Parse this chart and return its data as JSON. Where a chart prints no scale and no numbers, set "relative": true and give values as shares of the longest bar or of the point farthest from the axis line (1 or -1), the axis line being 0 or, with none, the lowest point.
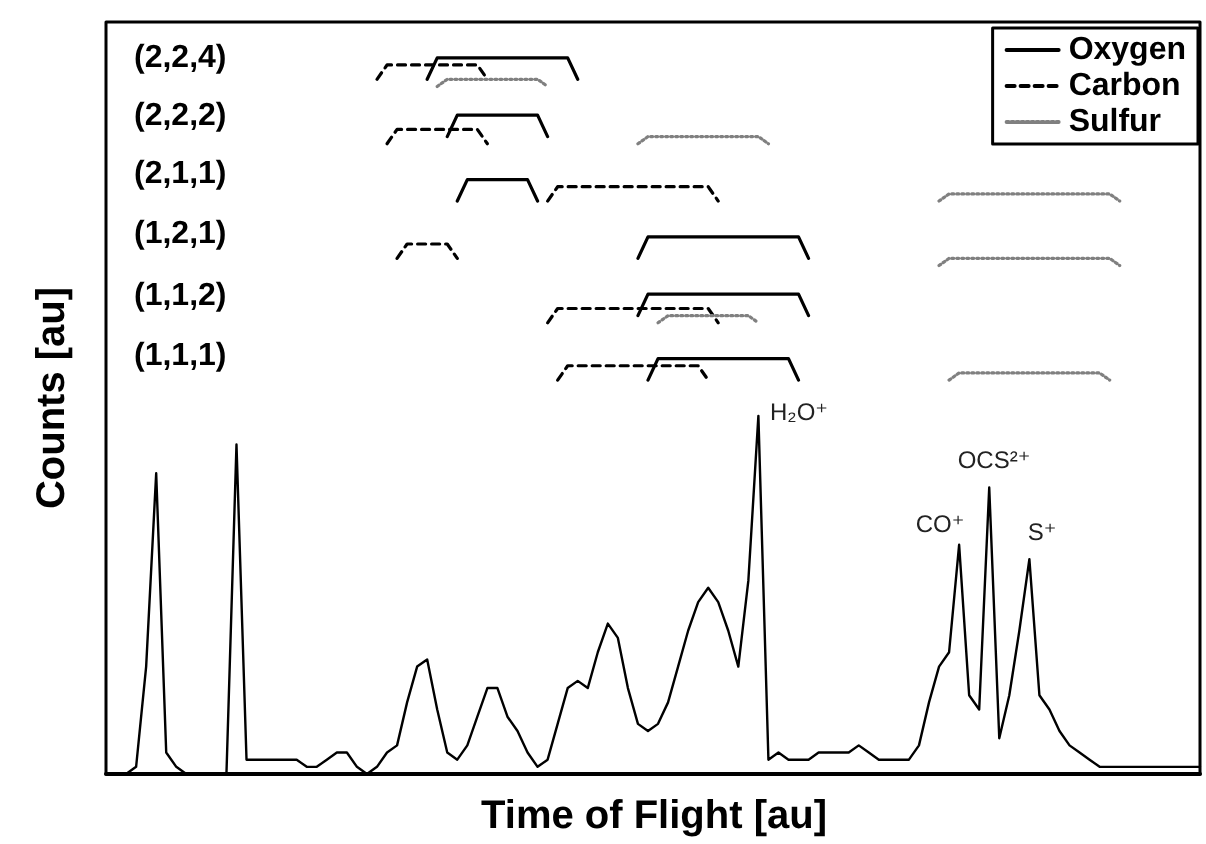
{
  "chart_data": {
    "type": "line",
    "relative": true,
    "xlabel": "Time of Flight [au]",
    "ylabel": "Counts [au]",
    "legend": "top right",
    "marker": "none",
    "grid": false,
    "categories": [
      null,
      null,
      null,
      null,
      null,
      null,
      null,
      null,
      null,
      null,
      null,
      null,
      null,
      null,
      null,
      null,
      null,
      null,
      null,
      null,
      null,
      null,
      null,
      null,
      null,
      null,
      null,
      null,
      null,
      null,
      null,
      null,
      null,
      null,
      null,
      null,
      null,
      null,
      null,
      null,
      null,
      null,
      null,
      null,
      null,
      null,
      null,
      null,
      null,
      null,
      null,
      null,
      null,
      null,
      null,
      null,
      null,
      null,
      null,
      null,
      null,
      null,
      null,
      null,
      null,
      null,
      null,
      null,
      null,
      null,
      null,
      null,
      null,
      null,
      null,
      null,
      null,
      null,
      null,
      null,
      null,
      null,
      null,
      null,
      null,
      null,
      null,
      null,
      null,
      null,
      null,
      null,
      null,
      null,
      null,
      null,
      null,
      null,
      null,
      null,
      null,
      null,
      null,
      null,
      null,
      null,
      null,
      null,
      null,
      null
    ],
    "annotations": [
      "H₂O⁺",
      "CO⁺",
      "OCS²⁺",
      "S⁺",
      "(2,2,4)",
      "(2,2,2)",
      "(2,1,1)",
      "(1,2,1)",
      "(1,1,2)",
      "(1,1,1)"
    ],
    "series": [
      {
        "color": "#000000",
        "line_style": "solid",
        "values": [
          0,
          0,
          0,
          0.01,
          0.15,
          0.42,
          0.03,
          0.01,
          0,
          0,
          0,
          0,
          0,
          0.46,
          0.02,
          0.02,
          0.02,
          0.02,
          0.02,
          0.02,
          0.01,
          0.01,
          0.02,
          0.03,
          0.03,
          0.01,
          0,
          0.01,
          0.03,
          0.04,
          0.1,
          0.15,
          0.16,
          0.09,
          0.03,
          0.02,
          0.04,
          0.08,
          0.12,
          0.12,
          0.08,
          0.06,
          0.03,
          0.01,
          0.02,
          0.07,
          0.12,
          0.13,
          0.12,
          0.17,
          0.21,
          0.19,
          0.12,
          0.07,
          0.06,
          0.07,
          0.1,
          0.15,
          0.2,
          0.24,
          0.26,
          0.24,
          0.2,
          0.15,
          0.27,
          0.5,
          0.02,
          0.03,
          0.02,
          0.02,
          0.02,
          0.03,
          0.03,
          0.03,
          0.03,
          0.04,
          0.03,
          0.02,
          0.02,
          0.02,
          0.02,
          0.04,
          0.1,
          0.15,
          0.17,
          0.32,
          0.11,
          0.09,
          0.4,
          0.05,
          0.11,
          0.2,
          0.3,
          0.11,
          0.09,
          0.06,
          0.04,
          0.03,
          0.02,
          0.01,
          0.01,
          0.01,
          0.01,
          0.01,
          0.01,
          0.01,
          0.01,
          0.01,
          0.01,
          0.01
        ]
      },
      {
        "name": "Oxygen",
        "color": "#000000",
        "line_style": "solid",
        "values": [
          null,
          null,
          null,
          null,
          null,
          null,
          null,
          null,
          null,
          null,
          null,
          null,
          null,
          null,
          null,
          null,
          null,
          null,
          null,
          null,
          null,
          null,
          null,
          null,
          null,
          null,
          null,
          null,
          null,
          null,
          null,
          null,
          0.97,
          1.0,
          1.0,
          1.0,
          1.0,
          1.0,
          1.0,
          1.0,
          1.0,
          1.0,
          1.0,
          1.0,
          1.0,
          1.0,
          1.0,
          0.97,
          null,
          null,
          null,
          null,
          null,
          null,
          null,
          null,
          null,
          null,
          null,
          null,
          null,
          null,
          null,
          null,
          null,
          null,
          null,
          null,
          null,
          null,
          null,
          null,
          null,
          null,
          null,
          null,
          null,
          null,
          null,
          null,
          null,
          null,
          null,
          null,
          null,
          null,
          null,
          null,
          null,
          null,
          null,
          null,
          null,
          null,
          null,
          null,
          null,
          null,
          null,
          null,
          null,
          null,
          null,
          null,
          null,
          null,
          null,
          null,
          null,
          null
        ]
      },
      {
        "name": "Carbon",
        "color": "#000000",
        "line_style": "dashed",
        "values": [
          null,
          null,
          null,
          null,
          null,
          null,
          null,
          null,
          null,
          null,
          null,
          null,
          null,
          null,
          null,
          null,
          null,
          null,
          null,
          null,
          null,
          null,
          null,
          null,
          null,
          null,
          null,
          0.97,
          0.99,
          0.99,
          0.99,
          0.99,
          0.99,
          0.99,
          0.99,
          0.99,
          0.99,
          0.99,
          0.97,
          null,
          null,
          null,
          null,
          null,
          null,
          null,
          null,
          null,
          null,
          null,
          null,
          null,
          null,
          null,
          null,
          null,
          null,
          null,
          null,
          null,
          null,
          null,
          null,
          null,
          null,
          null,
          null,
          null,
          null,
          null,
          null,
          null,
          null,
          null,
          null,
          null,
          null,
          null,
          null,
          null,
          null,
          null,
          null,
          null,
          null,
          null,
          null,
          null,
          null,
          null,
          null,
          null,
          null,
          null,
          null,
          null,
          null,
          null,
          null,
          null,
          null,
          null,
          null,
          null,
          null,
          null,
          null,
          null,
          null,
          null
        ]
      },
      {
        "name": "Sulfur",
        "color": "#808080",
        "line_style": "dotted",
        "values": [
          null,
          null,
          null,
          null,
          null,
          null,
          null,
          null,
          null,
          null,
          null,
          null,
          null,
          null,
          null,
          null,
          null,
          null,
          null,
          null,
          null,
          null,
          null,
          null,
          null,
          null,
          null,
          null,
          null,
          null,
          null,
          null,
          null,
          0.96,
          0.97,
          0.97,
          0.97,
          0.97,
          0.97,
          0.97,
          0.97,
          0.97,
          0.97,
          0.97,
          0.96,
          null,
          null,
          null,
          null,
          null,
          null,
          null,
          null,
          null,
          null,
          null,
          null,
          null,
          null,
          null,
          null,
          null,
          null,
          null,
          null,
          null,
          null,
          null,
          null,
          null,
          null,
          null,
          null,
          null,
          null,
          null,
          null,
          null,
          null,
          null,
          null,
          null,
          null,
          null,
          null,
          null,
          null,
          null,
          null,
          null,
          null,
          null,
          null,
          null,
          null,
          null,
          null,
          null,
          null,
          null,
          null,
          null,
          null,
          null,
          null,
          null,
          null,
          null,
          null,
          null
        ]
      },
      {
        "color": "#000000",
        "line_style": "solid",
        "values": [
          null,
          null,
          null,
          null,
          null,
          null,
          null,
          null,
          null,
          null,
          null,
          null,
          null,
          null,
          null,
          null,
          null,
          null,
          null,
          null,
          null,
          null,
          null,
          null,
          null,
          null,
          null,
          null,
          null,
          null,
          null,
          null,
          null,
          null,
          0.89,
          0.92,
          0.92,
          0.92,
          0.92,
          0.92,
          0.92,
          0.92,
          0.92,
          0.92,
          0.89,
          null,
          null,
          null,
          null,
          null,
          null,
          null,
          null,
          null,
          null,
          null,
          null,
          null,
          null,
          null,
          null,
          null,
          null,
          null,
          null,
          null,
          null,
          null,
          null,
          null,
          null,
          null,
          null,
          null,
          null,
          null,
          null,
          null,
          null,
          null,
          null,
          null,
          null,
          null,
          null,
          null,
          null,
          null,
          null,
          null,
          null,
          null,
          null,
          null,
          null,
          null,
          null,
          null,
          null,
          null,
          null,
          null,
          null,
          null,
          null,
          null,
          null,
          null,
          null,
          null
        ]
      },
      {
        "color": "#000000",
        "line_style": "dashed",
        "values": [
          null,
          null,
          null,
          null,
          null,
          null,
          null,
          null,
          null,
          null,
          null,
          null,
          null,
          null,
          null,
          null,
          null,
          null,
          null,
          null,
          null,
          null,
          null,
          null,
          null,
          null,
          null,
          null,
          0.88,
          0.9,
          0.9,
          0.9,
          0.9,
          0.9,
          0.9,
          0.9,
          0.9,
          0.9,
          0.88,
          null,
          null,
          null,
          null,
          null,
          null,
          null,
          null,
          null,
          null,
          null,
          null,
          null,
          null,
          null,
          null,
          null,
          null,
          null,
          null,
          null,
          null,
          null,
          null,
          null,
          null,
          null,
          null,
          null,
          null,
          null,
          null,
          null,
          null,
          null,
          null,
          null,
          null,
          null,
          null,
          null,
          null,
          null,
          null,
          null,
          null,
          null,
          null,
          null,
          null,
          null,
          null,
          null,
          null,
          null,
          null,
          null,
          null,
          null,
          null,
          null,
          null,
          null,
          null,
          null,
          null,
          null,
          null,
          null,
          null,
          null
        ]
      },
      {
        "color": "#808080",
        "line_style": "dotted",
        "values": [
          null,
          null,
          null,
          null,
          null,
          null,
          null,
          null,
          null,
          null,
          null,
          null,
          null,
          null,
          null,
          null,
          null,
          null,
          null,
          null,
          null,
          null,
          null,
          null,
          null,
          null,
          null,
          null,
          null,
          null,
          null,
          null,
          null,
          null,
          null,
          null,
          null,
          null,
          null,
          null,
          null,
          null,
          null,
          null,
          null,
          null,
          null,
          null,
          null,
          null,
          null,
          null,
          null,
          0.88,
          0.89,
          0.89,
          0.89,
          0.89,
          0.89,
          0.89,
          0.89,
          0.89,
          0.89,
          0.89,
          0.89,
          0.89,
          0.88,
          null,
          null,
          null,
          null,
          null,
          null,
          null,
          null,
          null,
          null,
          null,
          null,
          null,
          null,
          null,
          null,
          null,
          null,
          null,
          null,
          null,
          null,
          null,
          null,
          null,
          null,
          null,
          null,
          null,
          null,
          null,
          null,
          null,
          null,
          null,
          null,
          null,
          null,
          null,
          null,
          null,
          null,
          null
        ]
      },
      {
        "color": "#000000",
        "line_style": "solid",
        "values": [
          null,
          null,
          null,
          null,
          null,
          null,
          null,
          null,
          null,
          null,
          null,
          null,
          null,
          null,
          null,
          null,
          null,
          null,
          null,
          null,
          null,
          null,
          null,
          null,
          null,
          null,
          null,
          null,
          null,
          null,
          null,
          null,
          null,
          null,
          null,
          0.8,
          0.83,
          0.83,
          0.83,
          0.83,
          0.83,
          0.83,
          0.83,
          0.8,
          null,
          null,
          null,
          null,
          null,
          null,
          null,
          null,
          null,
          null,
          null,
          null,
          null,
          null,
          null,
          null,
          null,
          null,
          null,
          null,
          null,
          null,
          null,
          null,
          null,
          null,
          null,
          null,
          null,
          null,
          null,
          null,
          null,
          null,
          null,
          null,
          null,
          null,
          null,
          null,
          null,
          null,
          null,
          null,
          null,
          null,
          null,
          null,
          null,
          null,
          null,
          null,
          null,
          null,
          null,
          null,
          null,
          null,
          null,
          null,
          null,
          null,
          null,
          null,
          null,
          null
        ]
      },
      {
        "color": "#000000",
        "line_style": "dashed",
        "values": [
          null,
          null,
          null,
          null,
          null,
          null,
          null,
          null,
          null,
          null,
          null,
          null,
          null,
          null,
          null,
          null,
          null,
          null,
          null,
          null,
          null,
          null,
          null,
          null,
          null,
          null,
          null,
          null,
          null,
          null,
          null,
          null,
          null,
          null,
          null,
          null,
          null,
          null,
          null,
          null,
          null,
          null,
          null,
          null,
          0.8,
          0.82,
          0.82,
          0.82,
          0.82,
          0.82,
          0.82,
          0.82,
          0.82,
          0.82,
          0.82,
          0.82,
          0.82,
          0.82,
          0.82,
          0.82,
          0.82,
          0.8,
          null,
          null,
          null,
          null,
          null,
          null,
          null,
          null,
          null,
          null,
          null,
          null,
          null,
          null,
          null,
          null,
          null,
          null,
          null,
          null,
          null,
          null,
          null,
          null,
          null,
          null,
          null,
          null,
          null,
          null,
          null,
          null,
          null,
          null,
          null,
          null,
          null,
          null,
          null,
          null,
          null,
          null,
          null,
          null,
          null,
          null,
          null,
          null
        ]
      },
      {
        "color": "#808080",
        "line_style": "dotted",
        "values": [
          null,
          null,
          null,
          null,
          null,
          null,
          null,
          null,
          null,
          null,
          null,
          null,
          null,
          null,
          null,
          null,
          null,
          null,
          null,
          null,
          null,
          null,
          null,
          null,
          null,
          null,
          null,
          null,
          null,
          null,
          null,
          null,
          null,
          null,
          null,
          null,
          null,
          null,
          null,
          null,
          null,
          null,
          null,
          null,
          null,
          null,
          null,
          null,
          null,
          null,
          null,
          null,
          null,
          null,
          null,
          null,
          null,
          null,
          null,
          null,
          null,
          null,
          null,
          null,
          null,
          null,
          null,
          null,
          null,
          null,
          null,
          null,
          null,
          null,
          null,
          null,
          null,
          null,
          null,
          null,
          null,
          null,
          null,
          0.8,
          0.81,
          0.81,
          0.81,
          0.81,
          0.81,
          0.81,
          0.81,
          0.81,
          0.81,
          0.81,
          0.81,
          0.81,
          0.81,
          0.81,
          0.81,
          0.81,
          0.81,
          0.8,
          null,
          null,
          null,
          null,
          null,
          null,
          null,
          null
        ]
      },
      {
        "color": "#000000",
        "line_style": "solid",
        "values": [
          null,
          null,
          null,
          null,
          null,
          null,
          null,
          null,
          null,
          null,
          null,
          null,
          null,
          null,
          null,
          null,
          null,
          null,
          null,
          null,
          null,
          null,
          null,
          null,
          null,
          null,
          null,
          null,
          null,
          null,
          null,
          null,
          null,
          null,
          null,
          null,
          null,
          null,
          null,
          null,
          null,
          null,
          null,
          null,
          null,
          null,
          null,
          null,
          null,
          null,
          null,
          null,
          null,
          0.72,
          0.75,
          0.75,
          0.75,
          0.75,
          0.75,
          0.75,
          0.75,
          0.75,
          0.75,
          0.75,
          0.75,
          0.75,
          0.75,
          0.75,
          0.75,
          0.75,
          0.72,
          null,
          null,
          null,
          null,
          null,
          null,
          null,
          null,
          null,
          null,
          null,
          null,
          null,
          null,
          null,
          null,
          null,
          null,
          null,
          null,
          null,
          null,
          null,
          null,
          null,
          null,
          null,
          null,
          null,
          null,
          null,
          null,
          null,
          null,
          null,
          null,
          null,
          null,
          null
        ]
      },
      {
        "color": "#000000",
        "line_style": "dashed",
        "values": [
          null,
          null,
          null,
          null,
          null,
          null,
          null,
          null,
          null,
          null,
          null,
          null,
          null,
          null,
          null,
          null,
          null,
          null,
          null,
          null,
          null,
          null,
          null,
          null,
          null,
          null,
          null,
          null,
          null,
          0.72,
          0.74,
          0.74,
          0.74,
          0.74,
          0.74,
          0.72,
          null,
          null,
          null,
          null,
          null,
          null,
          null,
          null,
          null,
          null,
          null,
          null,
          null,
          null,
          null,
          null,
          null,
          null,
          null,
          null,
          null,
          null,
          null,
          null,
          null,
          null,
          null,
          null,
          null,
          null,
          null,
          null,
          null,
          null,
          null,
          null,
          null,
          null,
          null,
          null,
          null,
          null,
          null,
          null,
          null,
          null,
          null,
          null,
          null,
          null,
          null,
          null,
          null,
          null,
          null,
          null,
          null,
          null,
          null,
          null,
          null,
          null,
          null,
          null,
          null,
          null,
          null,
          null,
          null,
          null,
          null,
          null,
          null,
          null
        ]
      },
      {
        "color": "#808080",
        "line_style": "dotted",
        "values": [
          null,
          null,
          null,
          null,
          null,
          null,
          null,
          null,
          null,
          null,
          null,
          null,
          null,
          null,
          null,
          null,
          null,
          null,
          null,
          null,
          null,
          null,
          null,
          null,
          null,
          null,
          null,
          null,
          null,
          null,
          null,
          null,
          null,
          null,
          null,
          null,
          null,
          null,
          null,
          null,
          null,
          null,
          null,
          null,
          null,
          null,
          null,
          null,
          null,
          null,
          null,
          null,
          null,
          null,
          null,
          null,
          null,
          null,
          null,
          null,
          null,
          null,
          null,
          null,
          null,
          null,
          null,
          null,
          null,
          null,
          null,
          null,
          null,
          null,
          null,
          null,
          null,
          null,
          null,
          null,
          null,
          null,
          null,
          0.71,
          0.72,
          0.72,
          0.72,
          0.72,
          0.72,
          0.72,
          0.72,
          0.72,
          0.72,
          0.72,
          0.72,
          0.72,
          0.72,
          0.72,
          0.72,
          0.72,
          0.72,
          0.71,
          null,
          null,
          null,
          null,
          null,
          null,
          null,
          null
        ]
      },
      {
        "color": "#000000",
        "line_style": "solid",
        "values": [
          null,
          null,
          null,
          null,
          null,
          null,
          null,
          null,
          null,
          null,
          null,
          null,
          null,
          null,
          null,
          null,
          null,
          null,
          null,
          null,
          null,
          null,
          null,
          null,
          null,
          null,
          null,
          null,
          null,
          null,
          null,
          null,
          null,
          null,
          null,
          null,
          null,
          null,
          null,
          null,
          null,
          null,
          null,
          null,
          null,
          null,
          null,
          null,
          null,
          null,
          null,
          null,
          null,
          0.64,
          0.67,
          0.67,
          0.67,
          0.67,
          0.67,
          0.67,
          0.67,
          0.67,
          0.67,
          0.67,
          0.67,
          0.67,
          0.67,
          0.67,
          0.67,
          0.67,
          0.64,
          null,
          null,
          null,
          null,
          null,
          null,
          null,
          null,
          null,
          null,
          null,
          null,
          null,
          null,
          null,
          null,
          null,
          null,
          null,
          null,
          null,
          null,
          null,
          null,
          null,
          null,
          null,
          null,
          null,
          null,
          null,
          null,
          null,
          null,
          null,
          null,
          null,
          null,
          null
        ]
      },
      {
        "color": "#000000",
        "line_style": "dashed",
        "values": [
          null,
          null,
          null,
          null,
          null,
          null,
          null,
          null,
          null,
          null,
          null,
          null,
          null,
          null,
          null,
          null,
          null,
          null,
          null,
          null,
          null,
          null,
          null,
          null,
          null,
          null,
          null,
          null,
          null,
          null,
          null,
          null,
          null,
          null,
          null,
          null,
          null,
          null,
          null,
          null,
          null,
          null,
          null,
          null,
          0.63,
          0.65,
          0.65,
          0.65,
          0.65,
          0.65,
          0.65,
          0.65,
          0.65,
          0.65,
          0.65,
          0.65,
          0.65,
          0.65,
          0.65,
          0.65,
          0.65,
          0.63,
          null,
          null,
          null,
          null,
          null,
          null,
          null,
          null,
          null,
          null,
          null,
          null,
          null,
          null,
          null,
          null,
          null,
          null,
          null,
          null,
          null,
          null,
          null,
          null,
          null,
          null,
          null,
          null,
          null,
          null,
          null,
          null,
          null,
          null,
          null,
          null,
          null,
          null,
          null,
          null,
          null,
          null,
          null,
          null,
          null,
          null,
          null,
          null
        ]
      },
      {
        "color": "#808080",
        "line_style": "dotted",
        "values": [
          null,
          null,
          null,
          null,
          null,
          null,
          null,
          null,
          null,
          null,
          null,
          null,
          null,
          null,
          null,
          null,
          null,
          null,
          null,
          null,
          null,
          null,
          null,
          null,
          null,
          null,
          null,
          null,
          null,
          null,
          null,
          null,
          null,
          null,
          null,
          null,
          null,
          null,
          null,
          null,
          null,
          null,
          null,
          null,
          null,
          null,
          null,
          null,
          null,
          null,
          null,
          null,
          null,
          null,
          null,
          0.63,
          0.64,
          0.64,
          0.64,
          0.64,
          0.64,
          0.64,
          0.64,
          0.64,
          0.64,
          0.63,
          null,
          null,
          null,
          null,
          null,
          null,
          null,
          null,
          null,
          null,
          null,
          null,
          null,
          null,
          null,
          null,
          null,
          null,
          null,
          null,
          null,
          null,
          null,
          null,
          null,
          null,
          null,
          null,
          null,
          null,
          null,
          null,
          null,
          null,
          null,
          null,
          null,
          null,
          null,
          null,
          null,
          null,
          null,
          null
        ]
      },
      {
        "color": "#000000",
        "line_style": "solid",
        "values": [
          null,
          null,
          null,
          null,
          null,
          null,
          null,
          null,
          null,
          null,
          null,
          null,
          null,
          null,
          null,
          null,
          null,
          null,
          null,
          null,
          null,
          null,
          null,
          null,
          null,
          null,
          null,
          null,
          null,
          null,
          null,
          null,
          null,
          null,
          null,
          null,
          null,
          null,
          null,
          null,
          null,
          null,
          null,
          null,
          null,
          null,
          null,
          null,
          null,
          null,
          null,
          null,
          null,
          null,
          0.55,
          0.58,
          0.58,
          0.58,
          0.58,
          0.58,
          0.58,
          0.58,
          0.58,
          0.58,
          0.58,
          0.58,
          0.58,
          0.58,
          0.58,
          0.55,
          null,
          null,
          null,
          null,
          null,
          null,
          null,
          null,
          null,
          null,
          null,
          null,
          null,
          null,
          null,
          null,
          null,
          null,
          null,
          null,
          null,
          null,
          null,
          null,
          null,
          null,
          null,
          null,
          null,
          null,
          null,
          null,
          null,
          null,
          null,
          null,
          null,
          null,
          null,
          null
        ]
      },
      {
        "color": "#000000",
        "line_style": "dashed",
        "values": [
          null,
          null,
          null,
          null,
          null,
          null,
          null,
          null,
          null,
          null,
          null,
          null,
          null,
          null,
          null,
          null,
          null,
          null,
          null,
          null,
          null,
          null,
          null,
          null,
          null,
          null,
          null,
          null,
          null,
          null,
          null,
          null,
          null,
          null,
          null,
          null,
          null,
          null,
          null,
          null,
          null,
          null,
          null,
          null,
          null,
          0.55,
          0.57,
          0.57,
          0.57,
          0.57,
          0.57,
          0.57,
          0.57,
          0.57,
          0.57,
          0.57,
          0.57,
          0.57,
          0.57,
          0.57,
          0.55,
          null,
          null,
          null,
          null,
          null,
          null,
          null,
          null,
          null,
          null,
          null,
          null,
          null,
          null,
          null,
          null,
          null,
          null,
          null,
          null,
          null,
          null,
          null,
          null,
          null,
          null,
          null,
          null,
          null,
          null,
          null,
          null,
          null,
          null,
          null,
          null,
          null,
          null,
          null,
          null,
          null,
          null,
          null,
          null,
          null,
          null,
          null,
          null,
          null
        ]
      },
      {
        "color": "#808080",
        "line_style": "dotted",
        "values": [
          null,
          null,
          null,
          null,
          null,
          null,
          null,
          null,
          null,
          null,
          null,
          null,
          null,
          null,
          null,
          null,
          null,
          null,
          null,
          null,
          null,
          null,
          null,
          null,
          null,
          null,
          null,
          null,
          null,
          null,
          null,
          null,
          null,
          null,
          null,
          null,
          null,
          null,
          null,
          null,
          null,
          null,
          null,
          null,
          null,
          null,
          null,
          null,
          null,
          null,
          null,
          null,
          null,
          null,
          null,
          null,
          null,
          null,
          null,
          null,
          null,
          null,
          null,
          null,
          null,
          null,
          null,
          null,
          null,
          null,
          null,
          null,
          null,
          null,
          null,
          null,
          null,
          null,
          null,
          null,
          null,
          null,
          null,
          null,
          0.55,
          0.56,
          0.56,
          0.56,
          0.56,
          0.56,
          0.56,
          0.56,
          0.56,
          0.56,
          0.56,
          0.56,
          0.56,
          0.56,
          0.56,
          0.56,
          0.55,
          null,
          null,
          null,
          null,
          null,
          null,
          null,
          null,
          null
        ]
      }
    ]
  }
}
